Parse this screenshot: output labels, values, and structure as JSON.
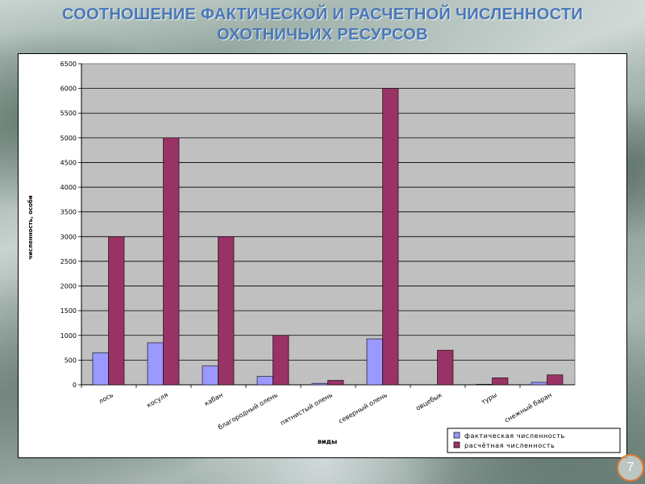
{
  "slide": {
    "title_line1": "СООТНОШЕНИЕ ФАКТИЧЕСКОЙ И РАСЧЕТНОЙ ЧИСЛЕННОСТИ",
    "title_line2": "ОХОТНИЧЬИХ РЕСУРСОВ",
    "page_number": "7"
  },
  "colors": {
    "plot_background": "#c0c0c0",
    "series_actual": "#9999ff",
    "series_calculated": "#993366",
    "title": "#4a78b8",
    "page_number_ring": "#e07a2e"
  },
  "chart_data": {
    "type": "bar",
    "title": "",
    "xlabel": "виды",
    "ylabel": "численность, особи",
    "ylim": [
      0,
      6500
    ],
    "ytick_step": 500,
    "yticks": [
      "0",
      "500",
      "1000",
      "1500",
      "2000",
      "2500",
      "3000",
      "3500",
      "4000",
      "4500",
      "5000",
      "5500",
      "6000",
      "6500"
    ],
    "grid": true,
    "legend_position": "bottom-right",
    "categories": [
      "лось",
      "косуля",
      "кабан",
      "благородный олень",
      "пятнистый олень",
      "северный олень",
      "овцебык",
      "туры",
      "снежный баран"
    ],
    "series": [
      {
        "name": "фактическая численность",
        "values": [
          650,
          850,
          380,
          170,
          30,
          930,
          0,
          10,
          50
        ]
      },
      {
        "name": "расчётная численность",
        "values": [
          3000,
          5000,
          3000,
          1000,
          90,
          6000,
          700,
          140,
          200
        ]
      }
    ]
  }
}
